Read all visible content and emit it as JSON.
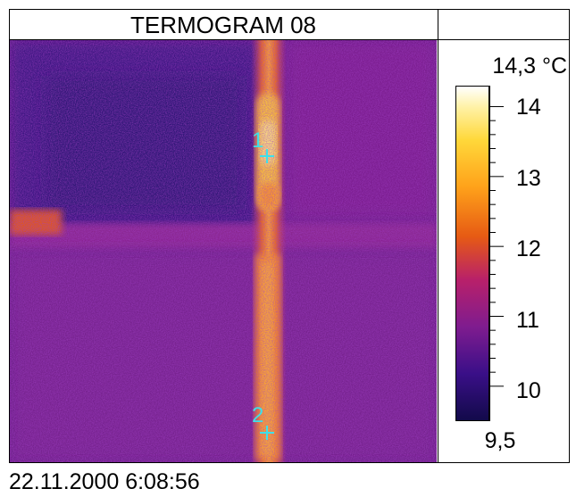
{
  "title": "TERMOGRAM 08",
  "timestamp": "22.11.2000 6:08:56",
  "scale": {
    "max_label": "14,3 °C",
    "min_label": "9,5",
    "tick_labels": [
      "14",
      "13",
      "12",
      "11",
      "10"
    ]
  },
  "markers": [
    {
      "label": "1"
    },
    {
      "label": "2"
    }
  ],
  "colors": {
    "marker": "#3ee0ea",
    "background": "#6a1a8a",
    "hot": "#ffd83a",
    "cold": "#2a1870"
  }
}
